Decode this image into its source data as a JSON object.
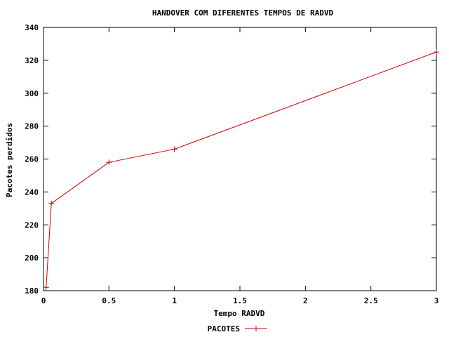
{
  "chart_data": {
    "type": "line",
    "title": "HANDOVER COM DIFERENTES TEMPOS DE RADVD",
    "xlabel": "Tempo RADVD",
    "ylabel": "Pacotes perdidos",
    "xlim": [
      0,
      3
    ],
    "ylim": [
      180,
      340
    ],
    "xticks": [
      0,
      0.5,
      1,
      1.5,
      2,
      2.5,
      3
    ],
    "xtick_labels": [
      "0",
      "0.5",
      "1",
      "1.5",
      "2",
      "2.5",
      "3"
    ],
    "yticks": [
      180,
      200,
      220,
      240,
      260,
      280,
      300,
      320,
      340
    ],
    "ytick_labels": [
      "180",
      "200",
      "220",
      "240",
      "260",
      "280",
      "300",
      "320",
      "340"
    ],
    "grid": false,
    "legend_position": "bottom-center",
    "series": [
      {
        "name": "PACOTES",
        "color": "#cc0000",
        "marker": "plus",
        "x": [
          0.02,
          0.06,
          0.5,
          1,
          3
        ],
        "y": [
          182,
          233,
          258,
          266,
          325
        ]
      }
    ]
  }
}
